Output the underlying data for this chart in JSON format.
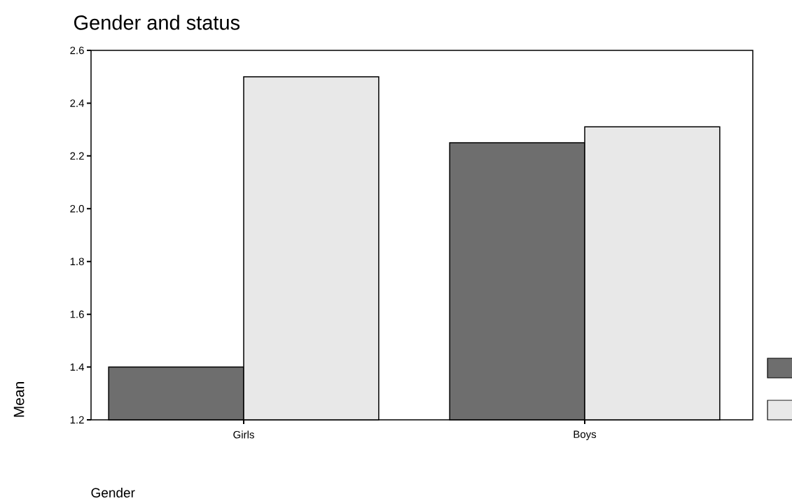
{
  "chart_data": {
    "type": "bar",
    "title": "Gender and status",
    "xlabel": "Gender",
    "ylabel": "Mean",
    "categories": [
      "Girls",
      "Boys"
    ],
    "series": [
      {
        "color": "#6e6e6e",
        "values": [
          1.4,
          2.25
        ]
      },
      {
        "color": "#e8e8e8",
        "values": [
          2.5,
          2.31
        ]
      }
    ],
    "ylim": [
      1.2,
      2.6
    ],
    "yticks": [
      {
        "value": 1.2,
        "label": "1.2"
      },
      {
        "value": 1.4,
        "label": "1.4"
      },
      {
        "value": 1.6,
        "label": "1.6"
      },
      {
        "value": 1.8,
        "label": "1.8"
      },
      {
        "value": 2.0,
        "label": "2.0"
      },
      {
        "value": 2.2,
        "label": "2.2"
      },
      {
        "value": 2.4,
        "label": "2.4"
      },
      {
        "value": 2.6,
        "label": "2.6"
      }
    ],
    "legend": false
  }
}
